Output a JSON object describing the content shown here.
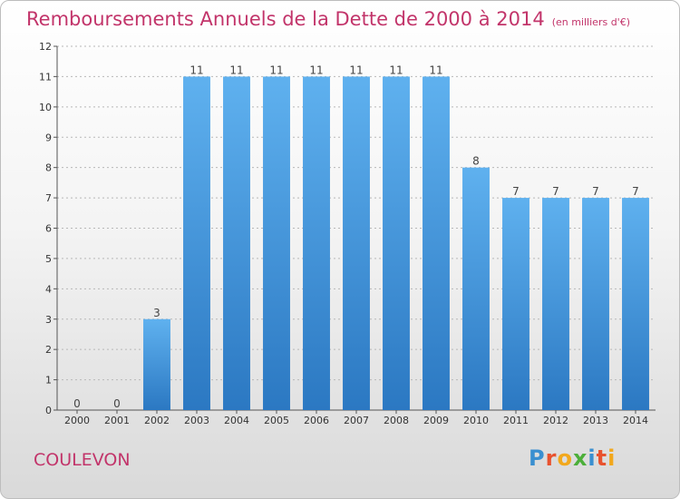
{
  "chart_data": {
    "type": "bar",
    "title": "Remboursements Annuels de la Dette de 2000 à 2014",
    "unit_note": "(en milliers d'€)",
    "categories": [
      "2000",
      "2001",
      "2002",
      "2003",
      "2004",
      "2005",
      "2006",
      "2007",
      "2008",
      "2009",
      "2010",
      "2011",
      "2012",
      "2013",
      "2014"
    ],
    "values": [
      0,
      0,
      3,
      11,
      11,
      11,
      11,
      11,
      11,
      11,
      8,
      7,
      7,
      7,
      7
    ],
    "ylim": [
      0,
      12
    ],
    "yticks": [
      0,
      1,
      2,
      3,
      4,
      5,
      6,
      7,
      8,
      9,
      10,
      11,
      12
    ],
    "xlabel": "",
    "ylabel": "",
    "bar_color": "#3d8fd6"
  },
  "footer": {
    "commune": "COULEVON",
    "logo_letters": [
      "P",
      "r",
      "o",
      "x",
      "i",
      "t",
      "i"
    ],
    "logo_colors": [
      "#3a8fd0",
      "#e8522e",
      "#f2a81d",
      "#4caf3a",
      "#3a8fd0",
      "#e8522e",
      "#f2a81d"
    ]
  }
}
